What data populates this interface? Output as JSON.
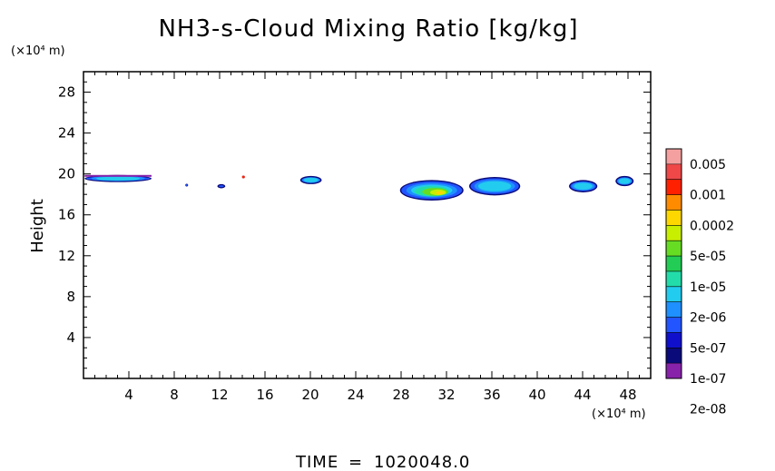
{
  "chart_data": {
    "type": "heatmap",
    "title": "NH3-s-Cloud Mixing Ratio [kg/kg]",
    "ylabel": "Height",
    "y_unit": "(×10⁴ m)",
    "x_unit": "(×10⁴ m)",
    "xlim": [
      0,
      50
    ],
    "ylim": [
      0,
      30
    ],
    "x_ticks": [
      "4",
      "8",
      "12",
      "16",
      "20",
      "24",
      "28",
      "32",
      "36",
      "40",
      "44",
      "48"
    ],
    "y_ticks": [
      "4",
      "8",
      "12",
      "16",
      "20",
      "24",
      "28"
    ],
    "colorbar": {
      "labels": [
        "0.005",
        "0.001",
        "0.0002",
        "5e-05",
        "1e-05",
        "2e-06",
        "5e-07",
        "1e-07",
        "2e-08"
      ],
      "colors": [
        "#f4a0a0",
        "#f04848",
        "#ff2000",
        "#ff8c00",
        "#ffd700",
        "#c8ee00",
        "#66dd22",
        "#22cc55",
        "#22ddaa",
        "#22ccee",
        "#1e90ff",
        "#2255ff",
        "#1010cc",
        "#0a0a7a",
        "#8822aa"
      ]
    },
    "cloud_regions": [
      {
        "x": [
          0.1,
          6.0
        ],
        "y": [
          19.2,
          19.9
        ],
        "level": 7
      },
      {
        "x": [
          9.0,
          9.2
        ],
        "y": [
          18.8,
          19.0
        ],
        "level": 5
      },
      {
        "x": [
          11.8,
          12.5
        ],
        "y": [
          18.6,
          19.0
        ],
        "level": 8
      },
      {
        "x": [
          14.0,
          14.2
        ],
        "y": [
          19.6,
          19.8
        ],
        "level": 14
      },
      {
        "x": [
          19.1,
          21.0
        ],
        "y": [
          19.0,
          19.8
        ],
        "level": 8
      },
      {
        "x": [
          27.9,
          33.5
        ],
        "y": [
          17.4,
          19.4
        ],
        "level": 4
      },
      {
        "x": [
          34.0,
          38.5
        ],
        "y": [
          17.9,
          19.7
        ],
        "level": 7
      },
      {
        "x": [
          42.8,
          45.3
        ],
        "y": [
          18.2,
          19.4
        ],
        "level": 8
      },
      {
        "x": [
          46.9,
          48.5
        ],
        "y": [
          18.8,
          19.8
        ],
        "level": 8
      }
    ]
  },
  "footer": {
    "time_label": "TIME",
    "time_sep": "=",
    "time_value": "1020048.0"
  }
}
